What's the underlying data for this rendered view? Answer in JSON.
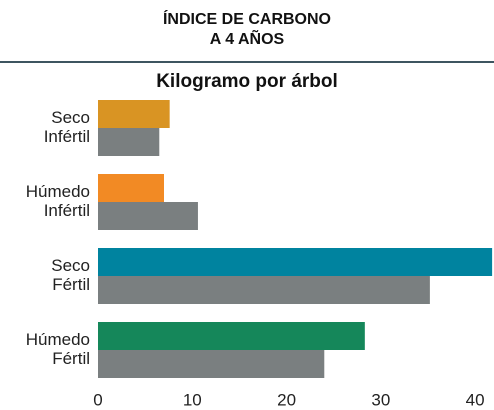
{
  "chart_data": {
    "type": "hbar",
    "title": [
      "ÍNDICE DE CARBONO",
      "A 4 AÑOS"
    ],
    "subtitle": "Kilogramo por árbol",
    "categories": [
      [
        "Seco",
        "Infértil"
      ],
      [
        "Húmedo",
        "Infértil"
      ],
      [
        "Seco",
        "Fértil"
      ],
      [
        "Húmedo",
        "Fértil"
      ]
    ],
    "series": [
      {
        "colors": [
          "#d99423",
          "#f28a24",
          "#00839f",
          "#15875a"
        ],
        "values": [
          7.6,
          7.0,
          41.8,
          28.3
        ]
      },
      {
        "color": "#7a7f80",
        "values": [
          6.5,
          10.6,
          35.2,
          24.0
        ]
      }
    ],
    "xlim": [
      0,
      42
    ],
    "xticks": [
      0,
      10,
      20,
      30,
      40
    ],
    "grid": false
  }
}
